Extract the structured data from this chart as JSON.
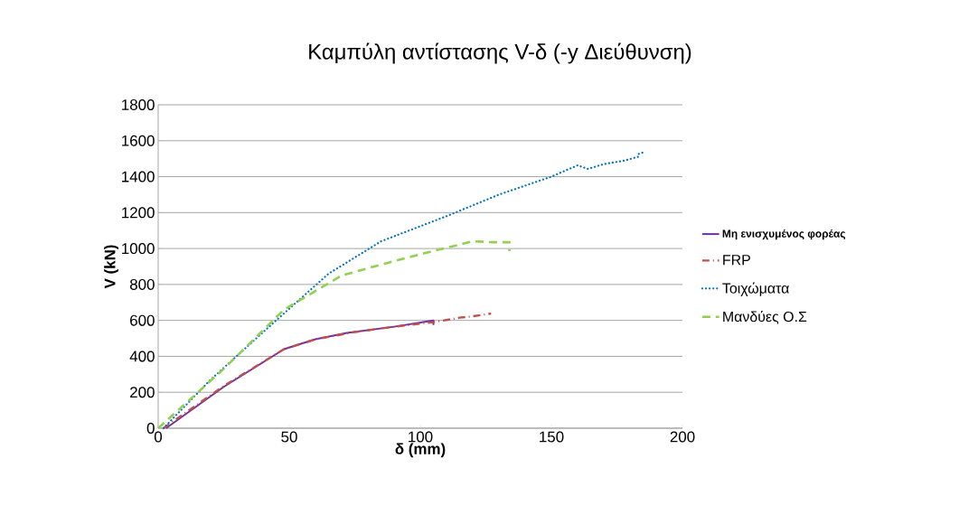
{
  "chart_data": {
    "type": "line",
    "title": "Καμπύλη αντίστασης V-δ (-y Διεύθυνση)",
    "xlabel": "δ (mm)",
    "ylabel": "V (kN)",
    "xlim": [
      0,
      200
    ],
    "xticks": [
      0,
      50,
      100,
      150,
      200
    ],
    "ylim": [
      0,
      1800
    ],
    "yticks": [
      0,
      200,
      400,
      600,
      800,
      1000,
      1200,
      1400,
      1600,
      1800
    ],
    "grid": "y",
    "legend": "right",
    "series": [
      {
        "name": "Μη ενισχυμένος φορέας",
        "color": "#7030a0",
        "line_style": "solid",
        "x": [
          3,
          25,
          48,
          60,
          72,
          90,
          105,
          105
        ],
        "values": [
          0,
          230,
          440,
          495,
          530,
          565,
          600,
          575
        ]
      },
      {
        "name": "FRP",
        "color": "#c0504d",
        "line_style": "dashdot",
        "x": [
          2,
          25,
          48,
          60,
          75,
          90,
          105,
          115,
          120,
          127
        ],
        "values": [
          0,
          235,
          440,
          495,
          535,
          565,
          590,
          615,
          623,
          638
        ]
      },
      {
        "name": "Τοιχώματα",
        "color": "#0070c0",
        "line_style": "dotted",
        "x": [
          2,
          20,
          45,
          65,
          85,
          110,
          130,
          150,
          160,
          164,
          170,
          178,
          183,
          183,
          186
        ],
        "values": [
          0,
          270,
          600,
          860,
          1040,
          1180,
          1300,
          1400,
          1463,
          1443,
          1470,
          1490,
          1510,
          1525,
          1540
        ]
      },
      {
        "name": "Μανδύες Ο.Σ",
        "color": "#92d050",
        "line_style": "dashed",
        "x": [
          0,
          25,
          48,
          70,
          90,
          106,
          120,
          128,
          134,
          134
        ],
        "values": [
          0,
          330,
          660,
          850,
          930,
          990,
          1040,
          1035,
          1035,
          985
        ]
      }
    ]
  }
}
